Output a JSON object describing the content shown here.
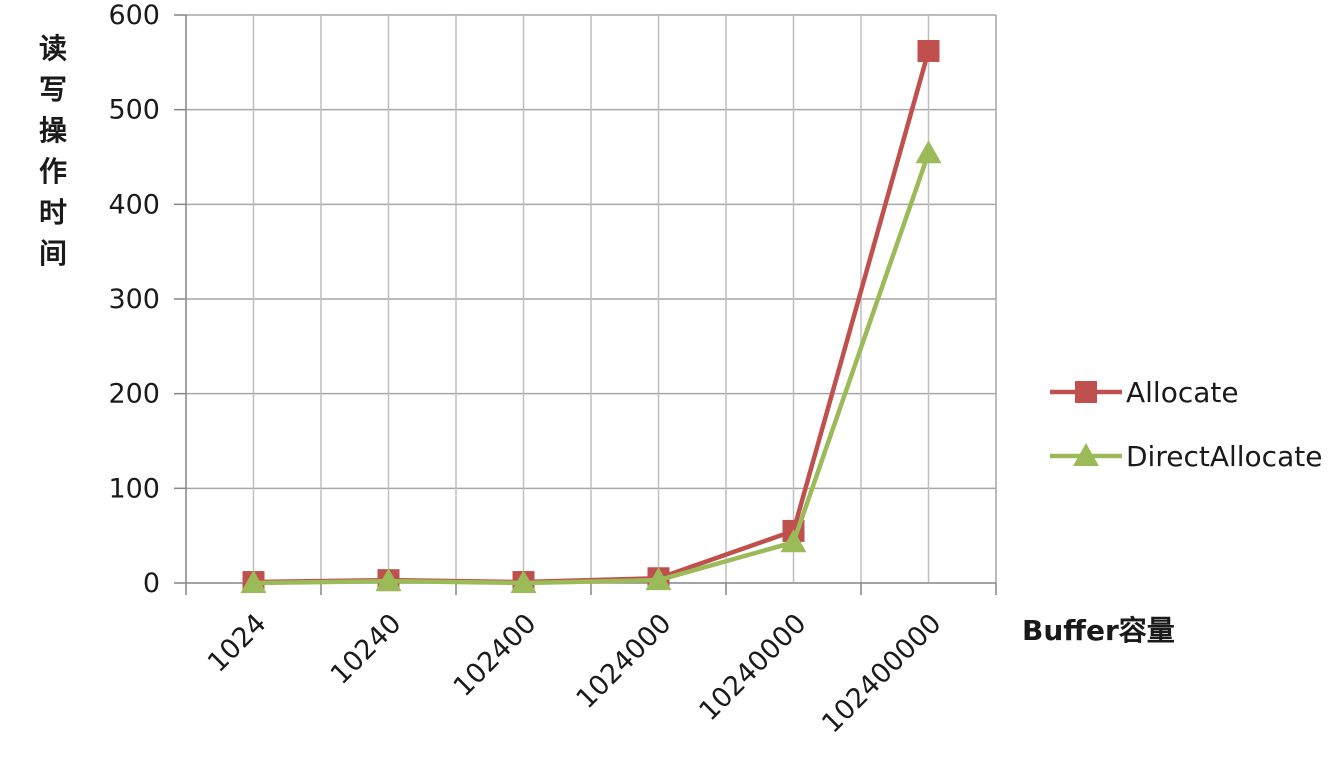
{
  "chart_data": {
    "type": "line",
    "categories": [
      "1024",
      "10240",
      "102400",
      "1024000",
      "10240000",
      "102400000"
    ],
    "series": [
      {
        "name": "Allocate",
        "color": "#c0504d",
        "marker": "square",
        "values": [
          1,
          3,
          1,
          5,
          55,
          562
        ]
      },
      {
        "name": "DirectAllocate",
        "color": "#9bbb59",
        "marker": "triangle",
        "values": [
          0,
          2,
          0,
          3,
          43,
          454
        ]
      }
    ],
    "title": "",
    "xlabel": "Buffer容量",
    "ylabel": "读写操作时间",
    "ylim": [
      0,
      600
    ],
    "yticks": [
      "0",
      "100",
      "200",
      "300",
      "400",
      "500",
      "600"
    ],
    "grid": true,
    "legend_position": "right"
  }
}
